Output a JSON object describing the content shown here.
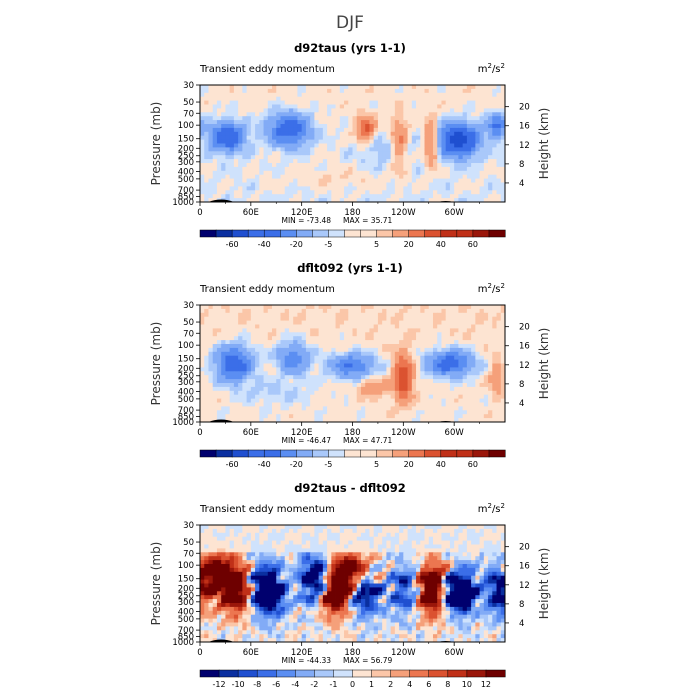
{
  "figure": {
    "title": "DJF",
    "sub_left": "Transient eddy momentum",
    "units": "m",
    "units_sup1": "2",
    "units_mid": "/s",
    "units_sup2": "2",
    "ylabel_left": "Pressure (mb)",
    "ylabel_right": "Height (km)"
  },
  "chart_data": [
    {
      "type": "heatmap",
      "title": "d92taus (yrs 1-1)",
      "xlabel": "",
      "ylabel": "Pressure (mb)",
      "x_ticks": [
        "0",
        "60E",
        "120E",
        "180",
        "120W",
        "60W"
      ],
      "x_tick_lon": [
        0,
        60,
        120,
        180,
        240,
        300
      ],
      "xlim": [
        0,
        360
      ],
      "y_ticks": [
        "30",
        "50",
        "70",
        "100",
        "150",
        "200",
        "250",
        "300",
        "400",
        "500",
        "700",
        "850",
        "1000"
      ],
      "y_tick_p": [
        30,
        50,
        70,
        100,
        150,
        200,
        250,
        300,
        400,
        500,
        700,
        850,
        1000
      ],
      "ylim": [
        1000,
        30
      ],
      "height_ticks": [
        "20",
        "16",
        "12",
        "8",
        "4"
      ],
      "height_km": [
        20,
        16,
        12,
        8,
        4
      ],
      "min_label": "MIN = -73.48",
      "max_label": "MAX =  35.71",
      "min": -73.48,
      "max": 35.71,
      "levels": [
        -70,
        -60,
        -50,
        -40,
        -30,
        -20,
        -10,
        -5,
        -1,
        1,
        5,
        10,
        20,
        30,
        40,
        50,
        60,
        70
      ],
      "colorbar_labels": [
        "-60",
        "-40",
        "-20",
        "-5",
        "5",
        "20",
        "40",
        "60"
      ],
      "colorbar_label_level_index": [
        1,
        3,
        5,
        7,
        10,
        12,
        14,
        16
      ]
    },
    {
      "type": "heatmap",
      "title": "dflt092 (yrs 1-1)",
      "xlabel": "",
      "ylabel": "Pressure (mb)",
      "x_ticks": [
        "0",
        "60E",
        "120E",
        "180",
        "120W",
        "60W"
      ],
      "x_tick_lon": [
        0,
        60,
        120,
        180,
        240,
        300
      ],
      "xlim": [
        0,
        360
      ],
      "y_ticks": [
        "30",
        "50",
        "70",
        "100",
        "150",
        "200",
        "250",
        "300",
        "400",
        "500",
        "700",
        "850",
        "1000"
      ],
      "y_tick_p": [
        30,
        50,
        70,
        100,
        150,
        200,
        250,
        300,
        400,
        500,
        700,
        850,
        1000
      ],
      "ylim": [
        1000,
        30
      ],
      "height_ticks": [
        "20",
        "16",
        "12",
        "8",
        "4"
      ],
      "height_km": [
        20,
        16,
        12,
        8,
        4
      ],
      "min_label": "MIN = -46.47",
      "max_label": "MAX =  47.71",
      "min": -46.47,
      "max": 47.71,
      "levels": [
        -70,
        -60,
        -50,
        -40,
        -30,
        -20,
        -10,
        -5,
        -1,
        1,
        5,
        10,
        20,
        30,
        40,
        50,
        60,
        70
      ],
      "colorbar_labels": [
        "-60",
        "-40",
        "-20",
        "-5",
        "5",
        "20",
        "40",
        "60"
      ],
      "colorbar_label_level_index": [
        1,
        3,
        5,
        7,
        10,
        12,
        14,
        16
      ]
    },
    {
      "type": "heatmap",
      "title": "d92taus - dflt092",
      "xlabel": "",
      "ylabel": "Pressure (mb)",
      "x_ticks": [
        "0",
        "60E",
        "120E",
        "180",
        "120W",
        "60W"
      ],
      "x_tick_lon": [
        0,
        60,
        120,
        180,
        240,
        300
      ],
      "xlim": [
        0,
        360
      ],
      "y_ticks": [
        "30",
        "50",
        "70",
        "100",
        "150",
        "200",
        "250",
        "300",
        "400",
        "500",
        "700",
        "850",
        "1000"
      ],
      "y_tick_p": [
        30,
        50,
        70,
        100,
        150,
        200,
        250,
        300,
        400,
        500,
        700,
        850,
        1000
      ],
      "ylim": [
        1000,
        30
      ],
      "height_ticks": [
        "20",
        "16",
        "12",
        "8",
        "4"
      ],
      "height_km": [
        20,
        16,
        12,
        8,
        4
      ],
      "min_label": "MIN = -44.33",
      "max_label": "MAX =  56.79",
      "min": -44.33,
      "max": 56.79,
      "levels": [
        -12,
        -10,
        -8,
        -6,
        -4,
        -2,
        -1,
        0,
        1,
        2,
        4,
        6,
        8,
        10,
        12
      ],
      "colorbar_labels": [
        "-12",
        "-10",
        "-8",
        "-6",
        "-4",
        "-2",
        "-1",
        "0",
        "1",
        "2",
        "4",
        "6",
        "8",
        "10",
        "12"
      ],
      "colorbar_label_level_index": [
        0,
        1,
        2,
        3,
        4,
        5,
        6,
        7,
        8,
        9,
        10,
        11,
        12,
        13,
        14
      ]
    }
  ],
  "palette": {
    "colors16": [
      "#00006e",
      "#0a2fa0",
      "#1f4fd0",
      "#3b6ee8",
      "#5b8ef2",
      "#82abf6",
      "#a9c8fa",
      "#cfe2fc",
      "#fde4d2",
      "#fbc6a8",
      "#f5a07a",
      "#ec7650",
      "#db5230",
      "#c03018",
      "#9a160a",
      "#6e0000"
    ],
    "colors19": [
      "#00006e",
      "#0a2fa0",
      "#1f4fd0",
      "#3b6ee8",
      "#5b8ef2",
      "#82abf6",
      "#a9c8fa",
      "#cfe2fc",
      "#fde4d2",
      "#fbc6a8",
      "#f5a07a",
      "#ec7650",
      "#db5230",
      "#c03018",
      "#9a160a",
      "#6e0000"
    ]
  }
}
